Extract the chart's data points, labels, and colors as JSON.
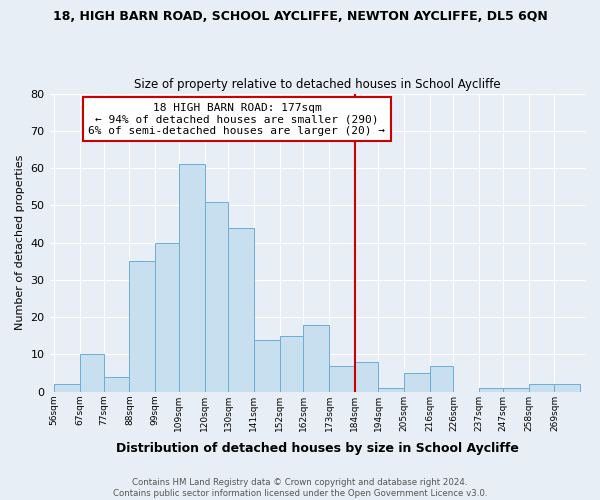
{
  "title": "18, HIGH BARN ROAD, SCHOOL AYCLIFFE, NEWTON AYCLIFFE, DL5 6QN",
  "subtitle": "Size of property relative to detached houses in School Aycliffe",
  "xlabel": "Distribution of detached houses by size in School Aycliffe",
  "ylabel": "Number of detached properties",
  "bin_labels": [
    "56sqm",
    "67sqm",
    "77sqm",
    "88sqm",
    "99sqm",
    "109sqm",
    "120sqm",
    "130sqm",
    "141sqm",
    "152sqm",
    "162sqm",
    "173sqm",
    "184sqm",
    "194sqm",
    "205sqm",
    "216sqm",
    "226sqm",
    "237sqm",
    "247sqm",
    "258sqm",
    "269sqm"
  ],
  "bar_values": [
    2,
    10,
    4,
    35,
    40,
    61,
    51,
    44,
    14,
    15,
    18,
    7,
    8,
    1,
    5,
    7,
    0,
    1,
    1,
    2,
    2
  ],
  "bar_color": "#c8dff0",
  "bar_edge_color": "#6aaed6",
  "vline_color": "#cc0000",
  "annotation_title": "18 HIGH BARN ROAD: 177sqm",
  "annotation_line1": "← 94% of detached houses are smaller (290)",
  "annotation_line2": "6% of semi-detached houses are larger (20) →",
  "annotation_box_color": "#ffffff",
  "annotation_box_edge": "#cc0000",
  "ylim": [
    0,
    80
  ],
  "yticks": [
    0,
    10,
    20,
    30,
    40,
    50,
    60,
    70,
    80
  ],
  "footer1": "Contains HM Land Registry data © Crown copyright and database right 2024.",
  "footer2": "Contains public sector information licensed under the Open Government Licence v3.0.",
  "bin_edges": [
    56,
    67,
    77,
    88,
    99,
    109,
    120,
    130,
    141,
    152,
    162,
    173,
    184,
    194,
    205,
    216,
    226,
    237,
    247,
    258,
    269,
    280
  ],
  "background_color": "#e8eef5",
  "grid_color": "#ffffff",
  "vline_bin_index": 11
}
